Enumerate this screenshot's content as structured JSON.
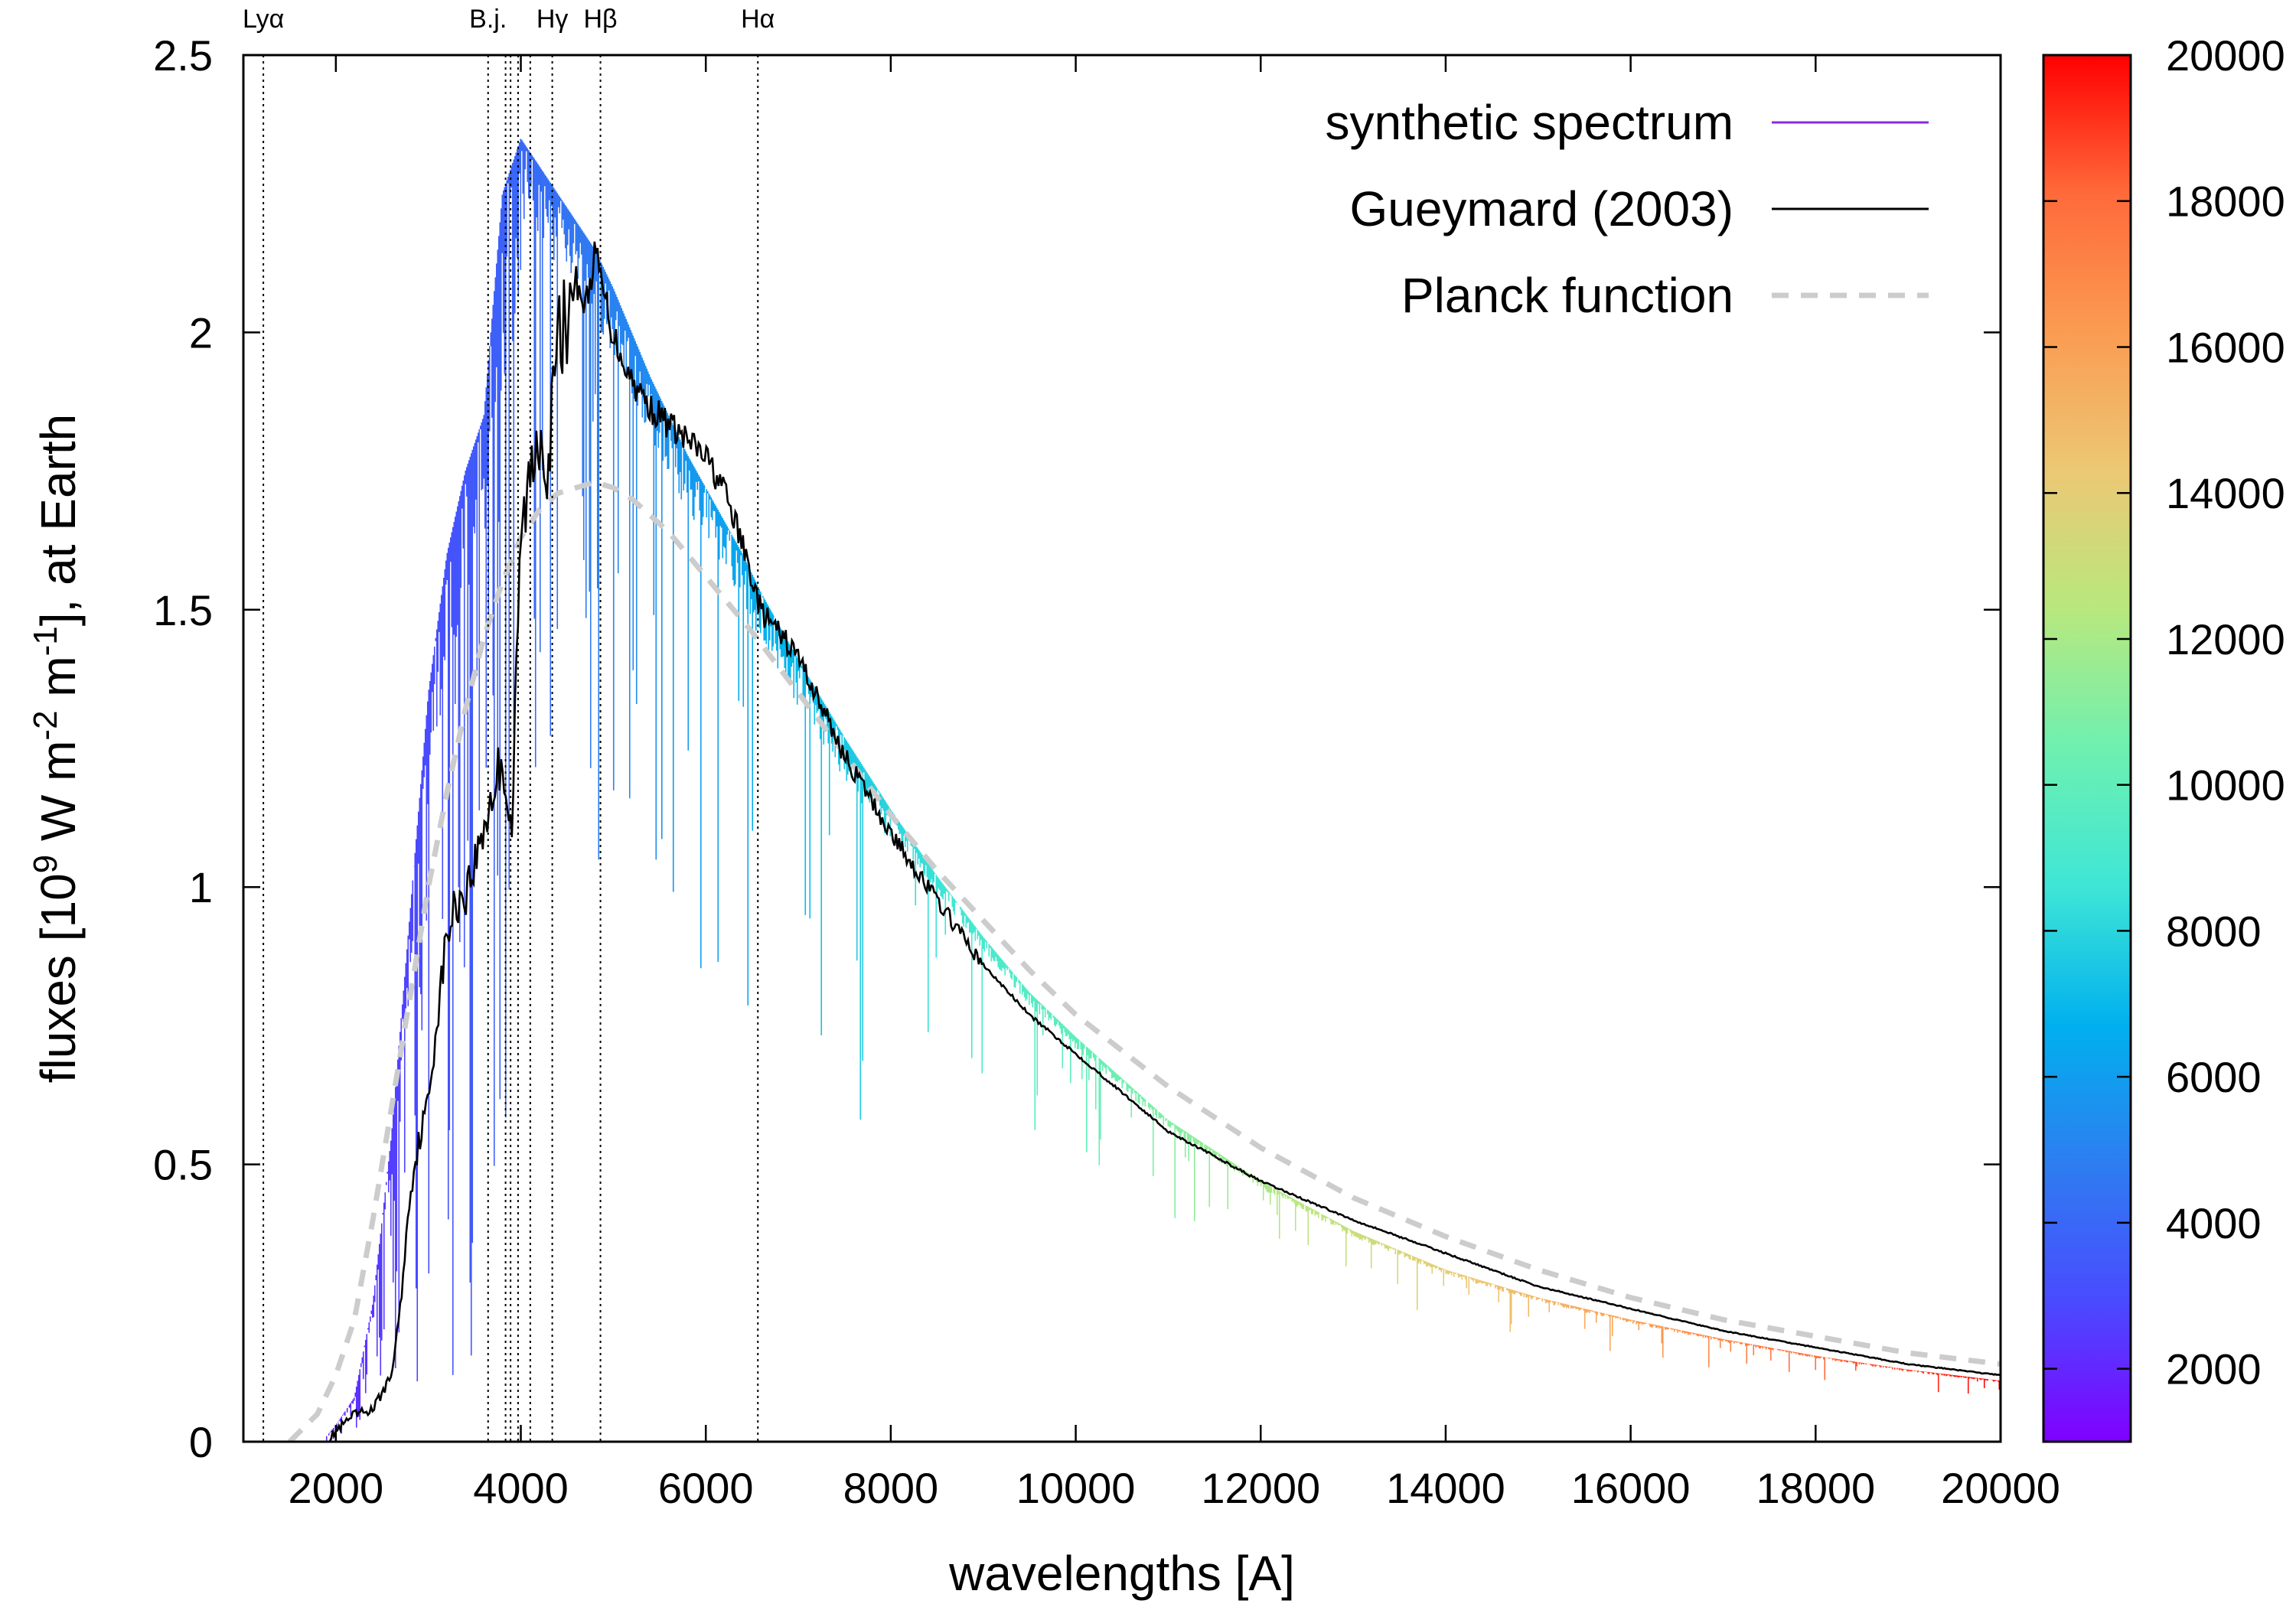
{
  "chart_data": {
    "type": "line",
    "xlabel": "wavelengths [A]",
    "ylabel": {
      "prefix": "fluxes [10",
      "exp1": "9",
      "mid1": " W m",
      "exp2": "-2",
      "mid2": " m",
      "exp3": "-1",
      "suffix": "], at Earth"
    },
    "xlim": [
      1000,
      20000
    ],
    "ylim": [
      0,
      2.5
    ],
    "x_ticks": [
      2000,
      4000,
      6000,
      8000,
      10000,
      12000,
      14000,
      16000,
      18000,
      20000
    ],
    "y_ticks": [
      0,
      0.5,
      1,
      1.5,
      2,
      2.5
    ],
    "grid": false,
    "legend_position": "top-right",
    "colorbar": {
      "min": 1000,
      "max": 20000,
      "ticks": [
        2000,
        4000,
        6000,
        8000,
        10000,
        12000,
        14000,
        16000,
        18000,
        20000
      ],
      "colors": [
        "#8000ff",
        "#4a4aff",
        "#2e7df0",
        "#00b0ee",
        "#3ee6d6",
        "#6ef0b0",
        "#b8e87e",
        "#ecc874",
        "#fa9c52",
        "#ff6a3a",
        "#ff0000"
      ]
    },
    "spectral_lines": [
      {
        "name": "Lyα",
        "x": 1216,
        "labeled": true
      },
      {
        "name": "B.j.",
        "x": 3646,
        "labeled": true
      },
      {
        "name": "",
        "x": 3835,
        "labeled": false
      },
      {
        "name": "",
        "x": 3889,
        "labeled": false
      },
      {
        "name": "",
        "x": 3970,
        "labeled": false
      },
      {
        "name": "",
        "x": 4102,
        "labeled": false
      },
      {
        "name": "Hγ",
        "x": 4340,
        "labeled": true
      },
      {
        "name": "Hβ",
        "x": 4861,
        "labeled": true
      },
      {
        "name": "Hα",
        "x": 6563,
        "labeled": true
      }
    ],
    "series": [
      {
        "name": "synthetic spectrum",
        "color": "#8a2be2",
        "x": [
          1900,
          2000,
          2200,
          2400,
          2600,
          2800,
          3000,
          3200,
          3400,
          3600,
          3800,
          4000,
          4200,
          4400,
          4600,
          4800,
          5000,
          5200,
          5400,
          5600,
          5800,
          6000,
          6200,
          6400,
          6600,
          6800,
          7000,
          7500,
          8000,
          8500,
          9000,
          9500,
          10000,
          11000,
          12000,
          13000,
          14000,
          15000,
          16000,
          17000,
          18000,
          19000,
          20000
        ],
        "y": [
          0.01,
          0.03,
          0.08,
          0.25,
          0.55,
          0.95,
          1.35,
          1.6,
          1.75,
          1.85,
          2.25,
          2.35,
          2.3,
          2.25,
          2.2,
          2.15,
          2.08,
          2.0,
          1.92,
          1.85,
          1.78,
          1.72,
          1.66,
          1.6,
          1.53,
          1.47,
          1.41,
          1.27,
          1.14,
          1.02,
          0.91,
          0.81,
          0.73,
          0.58,
          0.47,
          0.38,
          0.31,
          0.26,
          0.22,
          0.185,
          0.155,
          0.13,
          0.11
        ]
      },
      {
        "name": "Gueymard (2003)",
        "color": "#000000",
        "x": [
          1900,
          2000,
          2200,
          2400,
          2600,
          2700,
          2800,
          2900,
          3000,
          3100,
          3200,
          3300,
          3400,
          3500,
          3600,
          3700,
          3800,
          3900,
          4000,
          4100,
          4200,
          4300,
          4400,
          4500,
          4600,
          4700,
          4800,
          5000,
          5200,
          5400,
          5600,
          5800,
          6000,
          6200,
          6400,
          6600,
          6800,
          7000,
          7500,
          8000,
          8500,
          9000,
          9500,
          10000,
          11000,
          12000,
          13000,
          14000,
          15000,
          16000,
          17000,
          18000,
          19000,
          20000
        ],
        "y": [
          0.0,
          0.02,
          0.05,
          0.06,
          0.12,
          0.25,
          0.45,
          0.55,
          0.62,
          0.78,
          0.92,
          0.98,
          1.0,
          1.05,
          1.12,
          1.18,
          1.25,
          1.1,
          1.65,
          1.75,
          1.85,
          1.78,
          2.0,
          2.05,
          2.1,
          2.05,
          2.15,
          2.0,
          1.92,
          1.87,
          1.84,
          1.81,
          1.78,
          1.72,
          1.62,
          1.5,
          1.46,
          1.42,
          1.24,
          1.1,
          0.98,
          0.86,
          0.77,
          0.7,
          0.56,
          0.47,
          0.4,
          0.34,
          0.28,
          0.24,
          0.2,
          0.17,
          0.14,
          0.12
        ]
      },
      {
        "name": "Planck function",
        "color": "#cccccc",
        "x": [
          1500,
          1800,
          2000,
          2200,
          2400,
          2600,
          2800,
          3000,
          3200,
          3400,
          3600,
          3800,
          4000,
          4200,
          4400,
          4600,
          4800,
          5000,
          5200,
          5400,
          5600,
          5800,
          6000,
          6500,
          7000,
          7500,
          8000,
          8500,
          9000,
          9500,
          10000,
          11000,
          12000,
          13000,
          14000,
          15000,
          16000,
          17000,
          18000,
          19000,
          20000
        ],
        "y": [
          0.0,
          0.05,
          0.12,
          0.22,
          0.4,
          0.6,
          0.8,
          1.0,
          1.17,
          1.32,
          1.45,
          1.55,
          1.63,
          1.68,
          1.71,
          1.72,
          1.73,
          1.72,
          1.7,
          1.67,
          1.64,
          1.6,
          1.56,
          1.46,
          1.35,
          1.24,
          1.13,
          1.03,
          0.94,
          0.85,
          0.77,
          0.64,
          0.53,
          0.44,
          0.37,
          0.31,
          0.26,
          0.22,
          0.19,
          0.16,
          0.14
        ]
      }
    ]
  }
}
